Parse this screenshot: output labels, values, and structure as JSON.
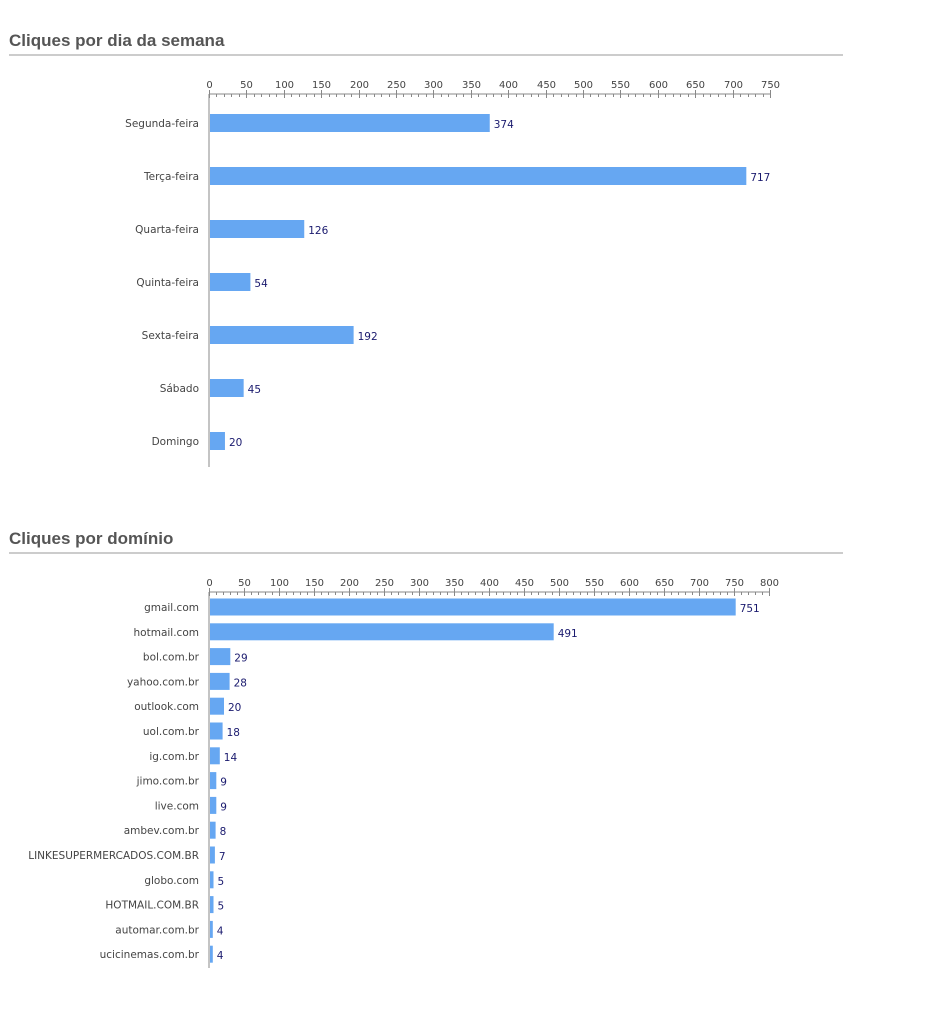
{
  "colors": {
    "bar": "#66a7f2",
    "value_text": "#1a1a6e",
    "axis": "#888888",
    "title": "#555555"
  },
  "chart_data": [
    {
      "type": "bar",
      "orientation": "horizontal",
      "title": "Cliques por dia da semana",
      "categories": [
        "Segunda-feira",
        "Terça-feira",
        "Quarta-feira",
        "Quinta-feira",
        "Sexta-feira",
        "Sábado",
        "Domingo"
      ],
      "values": [
        374,
        717,
        126,
        54,
        192,
        45,
        20
      ],
      "xticks": [
        0,
        50,
        100,
        150,
        200,
        250,
        300,
        350,
        400,
        450,
        500,
        550,
        600,
        650,
        700,
        750
      ],
      "xlim": [
        0,
        750
      ],
      "xlabel": "",
      "ylabel": "",
      "axis_position": "top",
      "data_labels": true
    },
    {
      "type": "bar",
      "orientation": "horizontal",
      "title": "Cliques por domínio",
      "categories": [
        "gmail.com",
        "hotmail.com",
        "bol.com.br",
        "yahoo.com.br",
        "outlook.com",
        "uol.com.br",
        "ig.com.br",
        "jimo.com.br",
        "live.com",
        "ambev.com.br",
        "LINKESUPERMERCADOS.COM.BR",
        "globo.com",
        "HOTMAIL.COM.BR",
        "automar.com.br",
        "ucicinemas.com.br"
      ],
      "values": [
        751,
        491,
        29,
        28,
        20,
        18,
        14,
        9,
        9,
        8,
        7,
        5,
        5,
        4,
        4
      ],
      "xticks": [
        0,
        50,
        100,
        150,
        200,
        250,
        300,
        350,
        400,
        450,
        500,
        550,
        600,
        650,
        700,
        750,
        800
      ],
      "xlim": [
        0,
        800
      ],
      "xlabel": "",
      "ylabel": "",
      "axis_position": "top",
      "data_labels": true
    }
  ]
}
